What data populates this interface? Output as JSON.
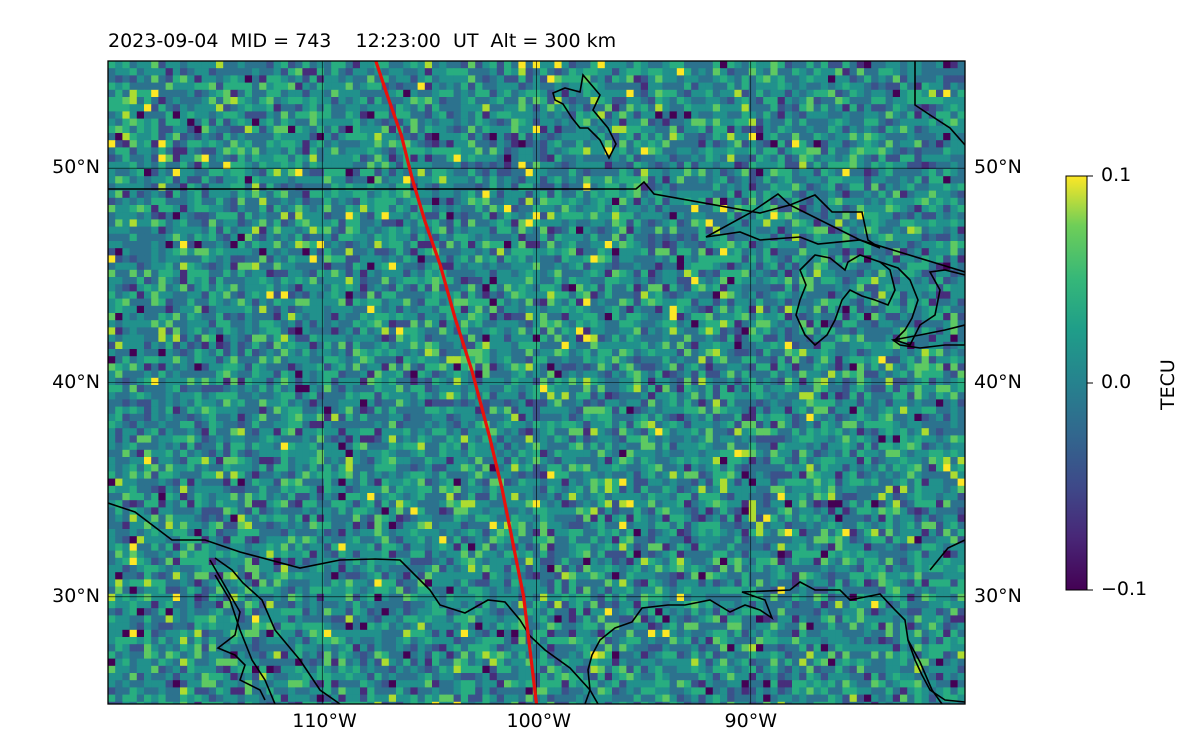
{
  "title": "2023-09-04  MID = 743    12:23:00  UT  Alt = 300 km",
  "map": {
    "lon_range": [
      -120,
      -80
    ],
    "lat_range": [
      25,
      55
    ],
    "lat_ticks": [
      {
        "value": 50,
        "label": "50°N"
      },
      {
        "value": 40,
        "label": "40°N"
      },
      {
        "value": 30,
        "label": "30°N"
      }
    ],
    "lon_ticks": [
      {
        "value": -110,
        "label": "110°W"
      },
      {
        "value": -100,
        "label": "100°W"
      },
      {
        "value": -90,
        "label": "90°W"
      }
    ],
    "grid": true,
    "background_colormap": "viridis",
    "track_color": "#e8120c",
    "track": [
      [
        -107.5,
        55
      ],
      [
        -107.0,
        53.5
      ],
      [
        -106.3,
        51.5
      ],
      [
        -105.8,
        49.5
      ],
      [
        -105.2,
        47.5
      ],
      [
        -104.5,
        45.5
      ],
      [
        -103.8,
        43.0
      ],
      [
        -103.0,
        40.5
      ],
      [
        -102.2,
        37.5
      ],
      [
        -101.6,
        35.0
      ],
      [
        -101.1,
        32.5
      ],
      [
        -100.6,
        30.0
      ],
      [
        -100.3,
        27.5
      ],
      [
        -100.0,
        25
      ]
    ]
  },
  "colorbar": {
    "label": "TECU",
    "min": -0.1,
    "max": 0.1,
    "ticks": [
      {
        "value": 0.1,
        "label": "0.1"
      },
      {
        "value": 0.0,
        "label": "0.0"
      },
      {
        "value": -0.1,
        "label": "−0.1"
      }
    ]
  }
}
